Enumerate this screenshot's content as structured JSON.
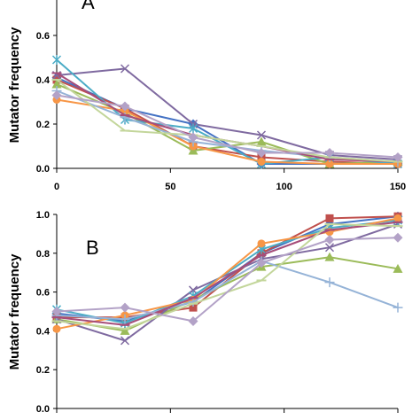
{
  "chart_data": [
    {
      "type": "line",
      "panel": "A",
      "title": "",
      "xlabel": "",
      "ylabel": "Mutator frequency",
      "x": [
        0,
        30,
        60,
        90,
        120,
        150
      ],
      "xticks": [
        0,
        50,
        100,
        150
      ],
      "xtick_labels": [
        "0",
        "50",
        "100",
        "150"
      ],
      "xlim": [
        0,
        150
      ],
      "ylim": [
        0,
        0.8
      ],
      "yticks": [
        0,
        0.2,
        0.4,
        0.6
      ],
      "ytick_labels": [
        "0.0",
        "0.2",
        "0.4",
        "0.6"
      ],
      "grid": false,
      "legend": "none",
      "series": [
        {
          "color": "#4472c4",
          "marker": "diamond",
          "values": [
            0.41,
            0.27,
            0.2,
            0.02,
            0.02,
            0.02
          ]
        },
        {
          "color": "#c0504d",
          "marker": "square",
          "values": [
            0.4,
            0.27,
            0.1,
            0.05,
            0.03,
            0.02
          ]
        },
        {
          "color": "#9bbb59",
          "marker": "triangle",
          "values": [
            0.38,
            0.25,
            0.08,
            0.12,
            0.02,
            0.03
          ]
        },
        {
          "color": "#7f6aa0",
          "marker": "x",
          "values": [
            0.42,
            0.45,
            0.2,
            0.15,
            0.06,
            0.04
          ]
        },
        {
          "color": "#4bacc6",
          "marker": "star",
          "values": [
            0.49,
            0.22,
            0.18,
            0.02,
            0.05,
            0.02
          ]
        },
        {
          "color": "#f79646",
          "marker": "circle",
          "values": [
            0.31,
            0.26,
            0.1,
            0.03,
            0.02,
            0.02
          ]
        },
        {
          "color": "#95b3d7",
          "marker": "plus",
          "values": [
            0.35,
            0.23,
            0.12,
            0.08,
            0.05,
            0.03
          ]
        },
        {
          "color": "#a64d79",
          "marker": "dash",
          "values": [
            0.43,
            0.24,
            0.15,
            0.1,
            0.04,
            0.03
          ]
        },
        {
          "color": "#c3d69b",
          "marker": "dash",
          "values": [
            0.4,
            0.17,
            0.15,
            0.1,
            0.05,
            0.03
          ]
        },
        {
          "color": "#b3a2c7",
          "marker": "diamond",
          "values": [
            0.33,
            0.28,
            0.14,
            0.07,
            0.07,
            0.05
          ]
        }
      ]
    },
    {
      "type": "line",
      "panel": "B",
      "title": "",
      "xlabel": "",
      "ylabel": "Mutator frequency",
      "x": [
        0,
        30,
        60,
        90,
        120,
        150
      ],
      "xticks": [
        0,
        50,
        100,
        150
      ],
      "xtick_labels": [],
      "xlim": [
        0,
        150
      ],
      "ylim": [
        0,
        1.0
      ],
      "yticks": [
        0,
        0.2,
        0.4,
        0.6,
        0.8,
        1.0
      ],
      "ytick_labels": [
        "0.0",
        "0.2",
        "0.4",
        "0.6",
        "0.8",
        "1.0"
      ],
      "grid": false,
      "legend": "none",
      "series": [
        {
          "color": "#4472c4",
          "marker": "diamond",
          "values": [
            0.49,
            0.45,
            0.55,
            0.8,
            0.95,
            0.99
          ]
        },
        {
          "color": "#c0504d",
          "marker": "square",
          "values": [
            0.47,
            0.47,
            0.52,
            0.8,
            0.98,
            0.99
          ]
        },
        {
          "color": "#9bbb59",
          "marker": "triangle",
          "values": [
            0.46,
            0.4,
            0.56,
            0.73,
            0.78,
            0.72
          ]
        },
        {
          "color": "#7f6aa0",
          "marker": "x",
          "values": [
            0.46,
            0.35,
            0.61,
            0.77,
            0.83,
            0.95
          ]
        },
        {
          "color": "#4bacc6",
          "marker": "star",
          "values": [
            0.51,
            0.44,
            0.58,
            0.82,
            0.93,
            0.97
          ]
        },
        {
          "color": "#f79646",
          "marker": "circle",
          "values": [
            0.41,
            0.48,
            0.56,
            0.85,
            0.91,
            0.98
          ]
        },
        {
          "color": "#95b3d7",
          "marker": "plus",
          "values": [
            0.48,
            0.46,
            0.55,
            0.76,
            0.65,
            0.52
          ]
        },
        {
          "color": "#a64d79",
          "marker": "dash",
          "values": [
            0.47,
            0.43,
            0.57,
            0.79,
            0.92,
            0.96
          ]
        },
        {
          "color": "#c3d69b",
          "marker": "dash",
          "values": [
            0.45,
            0.41,
            0.54,
            0.66,
            0.95,
            0.94
          ]
        },
        {
          "color": "#b3a2c7",
          "marker": "diamond",
          "values": [
            0.5,
            0.52,
            0.45,
            0.75,
            0.87,
            0.88
          ]
        }
      ]
    }
  ]
}
